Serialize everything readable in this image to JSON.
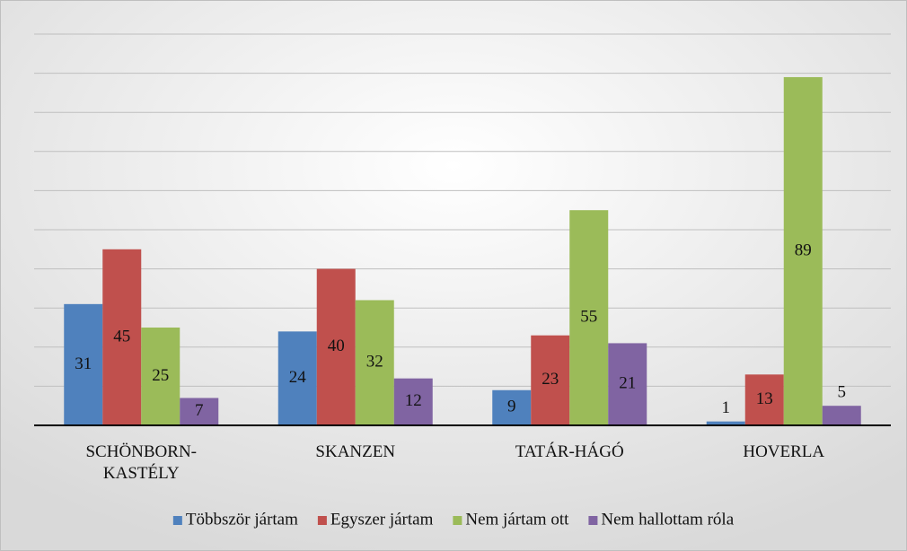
{
  "chart_data": {
    "type": "bar",
    "categories": [
      "SCHÖNBORN-KASTÉLY",
      "SKANZEN",
      "TATÁR-HÁGÓ",
      "HOVERLA"
    ],
    "series": [
      {
        "name": "Többször jártam",
        "color": "#4f81bd",
        "values": [
          31,
          24,
          9,
          1
        ]
      },
      {
        "name": "Egyszer jártam",
        "color": "#c0504d",
        "values": [
          45,
          40,
          23,
          13
        ]
      },
      {
        "name": "Nem jártam ott",
        "color": "#9bbb59",
        "values": [
          25,
          32,
          55,
          89
        ]
      },
      {
        "name": "Nem hallottam róla",
        "color": "#8064a2",
        "values": [
          7,
          12,
          21,
          5
        ]
      }
    ],
    "ylim": [
      0,
      100
    ],
    "yticks": [
      0,
      10,
      20,
      30,
      40,
      50,
      60,
      70,
      80,
      90,
      100
    ],
    "grid": true,
    "legend": "bottom"
  }
}
